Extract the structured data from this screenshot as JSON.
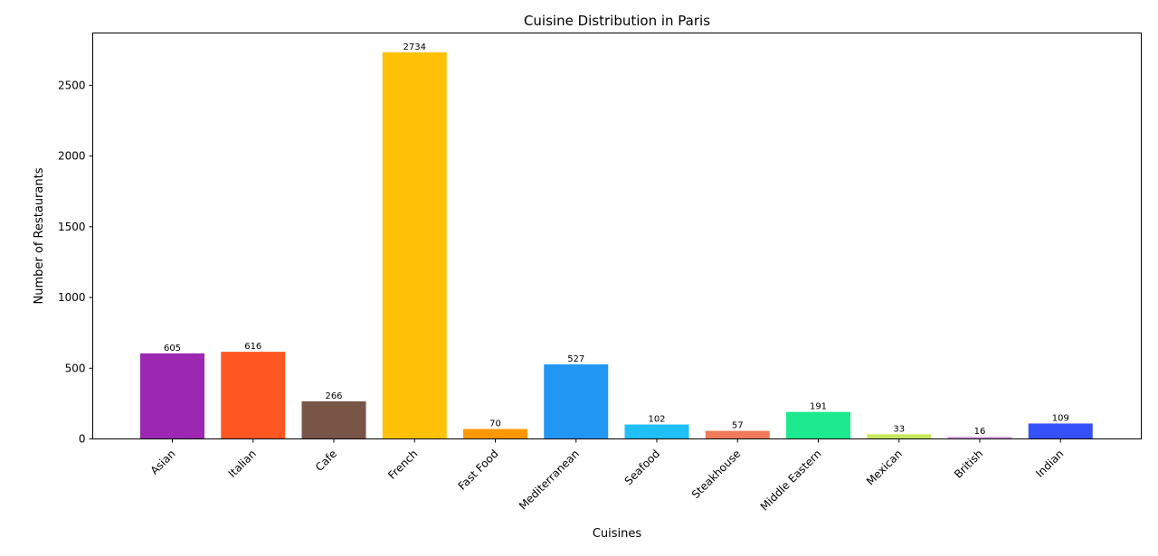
{
  "chart_data": {
    "type": "bar",
    "title": "Cuisine Distribution in Paris",
    "xlabel": "Cuisines",
    "ylabel": "Number of Restaurants",
    "categories": [
      "Asian",
      "Italian",
      "Cafe",
      "French",
      "Fast Food",
      "Mediterranean",
      "Seafood",
      "Steakhouse",
      "Middle Eastern",
      "Mexican",
      "British",
      "Indian"
    ],
    "values": [
      605,
      616,
      266,
      2734,
      70,
      527,
      102,
      57,
      191,
      33,
      16,
      109
    ],
    "colors": [
      "#9c27b0",
      "#ff5722",
      "#795548",
      "#ffc107",
      "#ff9800",
      "#2196f3",
      "#1ec0f7",
      "#f07b5a",
      "#1de98e",
      "#c6e760",
      "#d8a4e0",
      "#3551f8"
    ],
    "ylim": [
      0,
      2870
    ],
    "yticks": [
      0,
      500,
      1000,
      1500,
      2000,
      2500
    ],
    "grid": false,
    "data_labels": true
  }
}
